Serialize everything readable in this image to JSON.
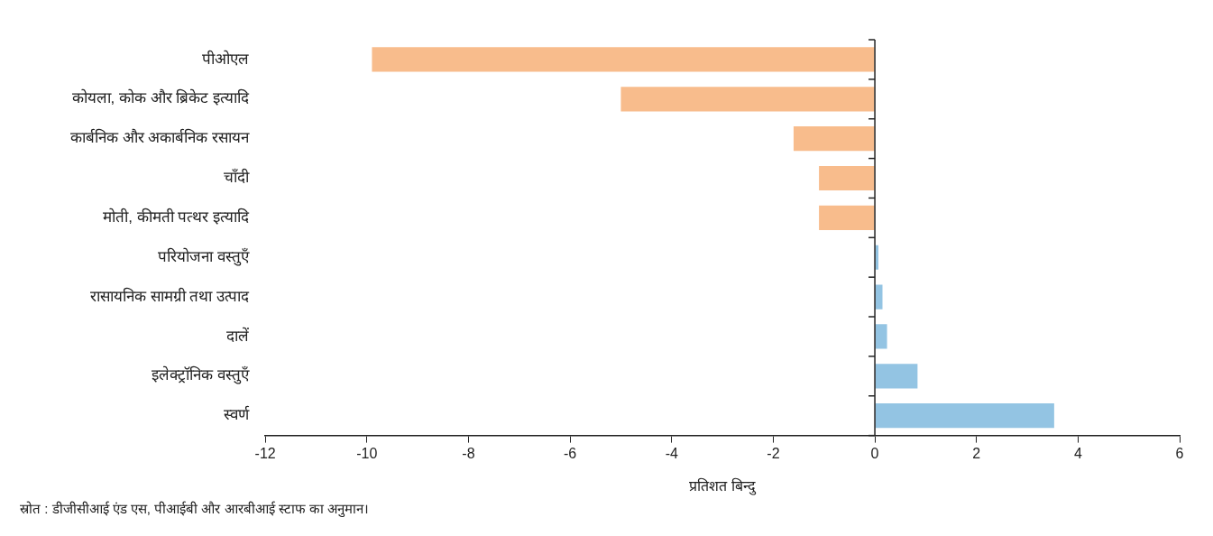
{
  "chart_data": {
    "type": "bar",
    "orientation": "horizontal",
    "categories": [
      "पीओएल",
      "कोयला, कोक और ब्रिकेट इत्यादि",
      "कार्बनिक और अकार्बनिक रसायन",
      "चाँदी",
      "मोती, कीमती पत्थर इत्यादि",
      "परियोजना वस्तुएँ",
      "रासायनिक सामग्री तथा उत्पाद",
      "दालें",
      "इलेक्ट्रॉनिक वस्तुएँ",
      "स्वर्ण"
    ],
    "values": [
      -9.9,
      -5.0,
      -1.6,
      -1.1,
      -1.1,
      0.07,
      0.15,
      0.24,
      0.84,
      3.53
    ],
    "colors": [
      "#f8bc8c",
      "#f8bc8c",
      "#f8bc8c",
      "#f8bc8c",
      "#f8bc8c",
      "#93c4e3",
      "#93c4e3",
      "#93c4e3",
      "#93c4e3",
      "#93c4e3"
    ],
    "xlim": [
      -12,
      6
    ],
    "xticks": [
      -12,
      -10,
      -8,
      -6,
      -4,
      -2,
      0,
      2,
      4,
      6
    ],
    "xlabel": "प्रतिशत बिन्दु",
    "grid": false,
    "legend": false,
    "ref_lines": [
      {
        "axis": "x",
        "value": 0,
        "color": "#222222"
      }
    ],
    "annotations": [
      "स्रोत : डीजीसीआई एंड एस, पीआईबी और आरबीआई स्टाफ का अनुमान।"
    ]
  }
}
